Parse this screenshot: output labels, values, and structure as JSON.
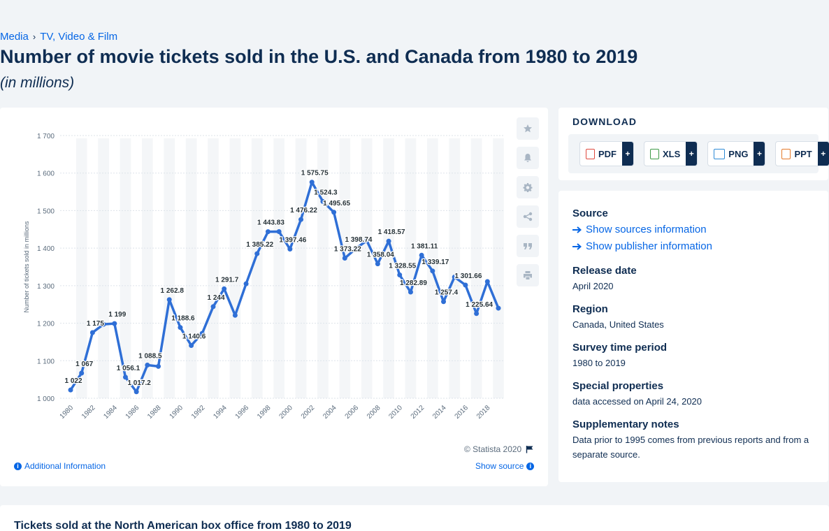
{
  "breadcrumb": {
    "items": [
      "Media",
      "TV, Video & Film"
    ]
  },
  "title": "Number of movie tickets sold in the U.S. and Canada from 1980 to 2019",
  "subtitle": "(in millions)",
  "chart_data": {
    "type": "line",
    "title": "",
    "xlabel": "",
    "ylabel": "Number of tickets sold in millions",
    "ylim": [
      1000,
      1700
    ],
    "yticks": [
      1000,
      1100,
      1200,
      1300,
      1400,
      1500,
      1600,
      1700
    ],
    "ytick_labels": [
      "1 000",
      "1 100",
      "1 200",
      "1 300",
      "1 400",
      "1 500",
      "1 600",
      "1 700"
    ],
    "xtick_labels": [
      "1980",
      "1982",
      "1984",
      "1986",
      "1988",
      "1990",
      "1992",
      "1994",
      "1996",
      "1998",
      "2000",
      "2002",
      "2004",
      "2006",
      "2008",
      "2010",
      "2012",
      "2014",
      "2016",
      "2018"
    ],
    "grid": true,
    "line_color": "#2f6fd6",
    "x": [
      1980,
      1981,
      1982,
      1983,
      1984,
      1985,
      1986,
      1987,
      1988,
      1989,
      1990,
      1991,
      1992,
      1993,
      1994,
      1995,
      1996,
      1997,
      1998,
      1999,
      2000,
      2001,
      2002,
      2003,
      2004,
      2005,
      2006,
      2007,
      2008,
      2009,
      2010,
      2011,
      2012,
      2013,
      2014,
      2015,
      2016,
      2017,
      2018,
      2019
    ],
    "values": [
      1022,
      1067,
      1175,
      1197,
      1199,
      1056.1,
      1017.2,
      1088.5,
      1085,
      1262.8,
      1188.6,
      1140.6,
      1173,
      1244,
      1291.7,
      1221,
      1305,
      1385.22,
      1443.83,
      1444,
      1397.46,
      1476.22,
      1575.75,
      1524.3,
      1495.65,
      1373.22,
      1398.74,
      1420,
      1358.04,
      1418.57,
      1328.55,
      1282.89,
      1381.11,
      1339.17,
      1257.4,
      1323,
      1301.66,
      1225.64,
      1311,
      1240
    ],
    "labels": [
      {
        "year": 1980,
        "text": "1 022"
      },
      {
        "year": 1981,
        "text": "1 067"
      },
      {
        "year": 1982,
        "text": "1 175"
      },
      {
        "year": 1984,
        "text": "1 199"
      },
      {
        "year": 1985,
        "text": "1 056.1"
      },
      {
        "year": 1986,
        "text": "1 017.2"
      },
      {
        "year": 1987,
        "text": "1 088.5"
      },
      {
        "year": 1989,
        "text": "1 262.8"
      },
      {
        "year": 1990,
        "text": "1 188.6"
      },
      {
        "year": 1991,
        "text": "1 140.6"
      },
      {
        "year": 1993,
        "text": "1 244"
      },
      {
        "year": 1994,
        "text": "1 291.7"
      },
      {
        "year": 1997,
        "text": "1 385.22"
      },
      {
        "year": 1998,
        "text": "1 443.83"
      },
      {
        "year": 2000,
        "text": "1 397.46"
      },
      {
        "year": 2001,
        "text": "1 476.22"
      },
      {
        "year": 2002,
        "text": "1 575.75"
      },
      {
        "year": 2003,
        "text": "1 524.3"
      },
      {
        "year": 2004,
        "text": "1 495.65"
      },
      {
        "year": 2005,
        "text": "1 373.22"
      },
      {
        "year": 2006,
        "text": "1 398.74"
      },
      {
        "year": 2008,
        "text": "1 358.04"
      },
      {
        "year": 2009,
        "text": "1 418.57"
      },
      {
        "year": 2010,
        "text": "1 328.55"
      },
      {
        "year": 2011,
        "text": "1 282.89"
      },
      {
        "year": 2012,
        "text": "1 381.11"
      },
      {
        "year": 2013,
        "text": "1 339.17"
      },
      {
        "year": 2014,
        "text": "1 257.4"
      },
      {
        "year": 2016,
        "text": "1 301.66"
      },
      {
        "year": 2017,
        "text": "1 225.64"
      }
    ]
  },
  "chart_footer": {
    "copyright": "© Statista 2020",
    "additional_info": "Additional Information",
    "show_source": "Show source"
  },
  "tools": [
    "star-icon",
    "bell-icon",
    "gear-icon",
    "share-icon",
    "quote-icon",
    "print-icon"
  ],
  "download": {
    "title": "DOWNLOAD",
    "buttons": [
      {
        "label": "PDF",
        "color": "#e04a3f"
      },
      {
        "label": "XLS",
        "color": "#3e9b48"
      },
      {
        "label": "PNG",
        "color": "#2f8bd6"
      },
      {
        "label": "PPT",
        "color": "#e57a2a"
      }
    ],
    "plus": "+"
  },
  "meta": {
    "source_heading": "Source",
    "show_sources": "Show sources information",
    "show_publisher": "Show publisher information",
    "release_heading": "Release date",
    "release_value": "April 2020",
    "region_heading": "Region",
    "region_value": "Canada, United States",
    "survey_heading": "Survey time period",
    "survey_value": "1980 to 2019",
    "special_heading": "Special properties",
    "special_value": "data accessed on April 24, 2020",
    "notes_heading": "Supplementary notes",
    "notes_value": "Data prior to 1995 comes from previous reports and from a separate source."
  },
  "bottom": {
    "title": "Tickets sold at the North American box office from 1980 to 2019"
  }
}
